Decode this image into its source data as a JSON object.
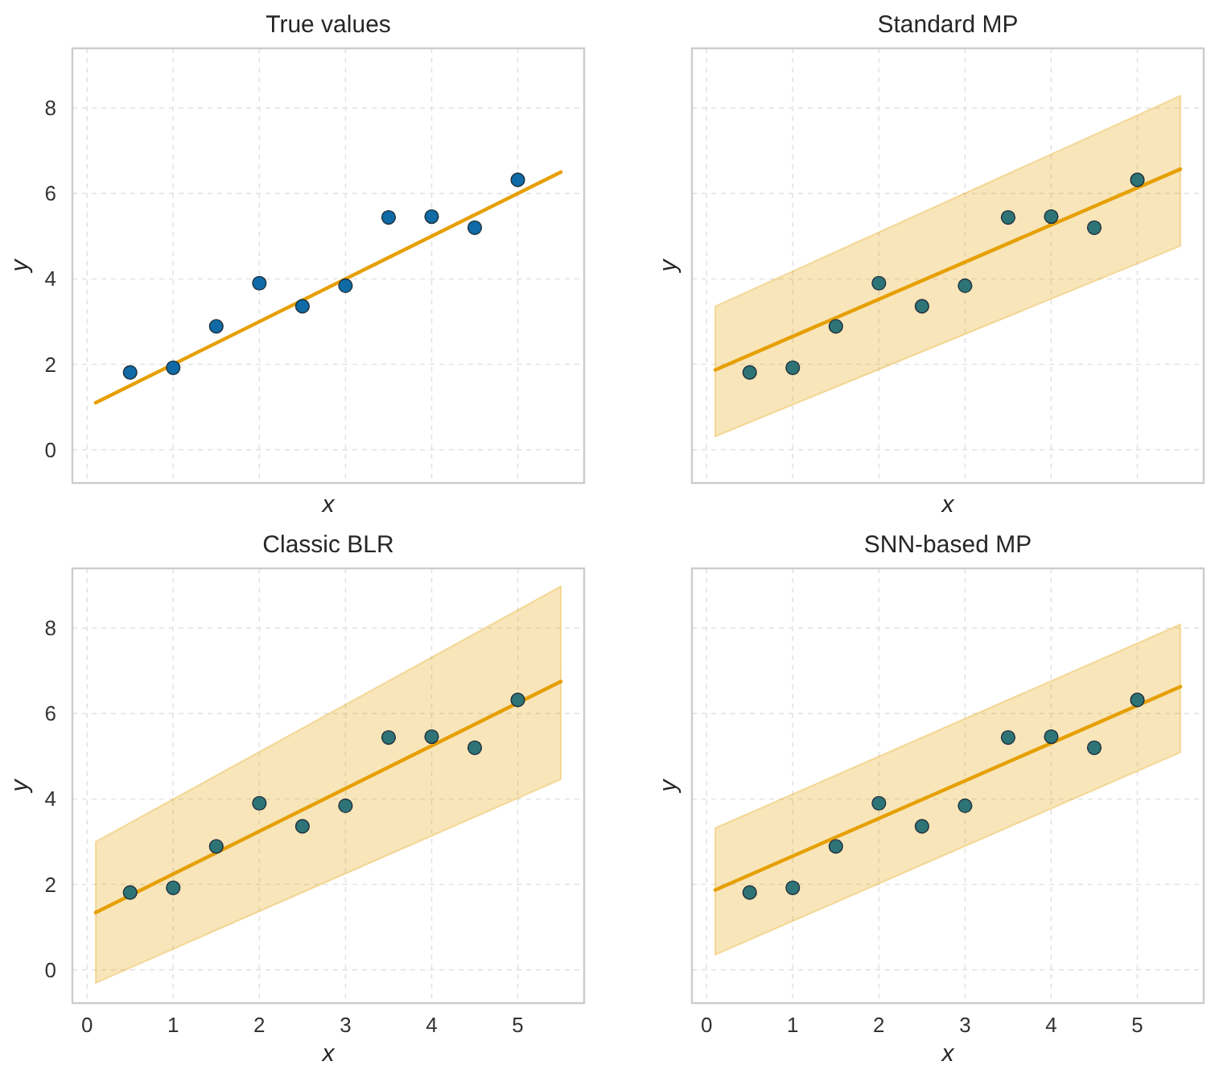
{
  "chart_data": [
    {
      "type": "scatter",
      "title": "True values",
      "xlabel": "x",
      "ylabel": "y",
      "xlim": [
        -0.17,
        5.77
      ],
      "ylim": [
        -0.78,
        9.4
      ],
      "xticks": [
        0,
        1,
        2,
        3,
        4,
        5
      ],
      "yticks": [
        0,
        2,
        4,
        6,
        8
      ],
      "grid": true,
      "tick_labels": "y",
      "series": [
        {
          "type": "scatter",
          "marker": "circle",
          "color": "#0f6aa6",
          "x": [
            0.5,
            1,
            1.5,
            2,
            2.5,
            3,
            3.5,
            4,
            4.5,
            5
          ],
          "values": [
            1.81,
            1.92,
            2.89,
            3.9,
            3.36,
            3.84,
            5.44,
            5.46,
            5.2,
            6.32
          ]
        },
        {
          "type": "line",
          "color": "#e69f00",
          "x": [
            0.1,
            5.5
          ],
          "values": [
            1.1,
            6.5
          ]
        }
      ]
    },
    {
      "type": "scatter",
      "title": "Standard MP",
      "xlabel": "x",
      "ylabel": "y",
      "xlim": [
        -0.17,
        5.77
      ],
      "ylim": [
        -0.78,
        9.4
      ],
      "xticks": [
        0,
        1,
        2,
        3,
        4,
        5
      ],
      "yticks": [
        0,
        2,
        4,
        6,
        8
      ],
      "grid": true,
      "tick_labels": false,
      "series": [
        {
          "type": "scatter",
          "marker": "circle",
          "color": "#2e7477",
          "x": [
            0.5,
            1,
            1.5,
            2,
            2.5,
            3,
            3.5,
            4,
            4.5,
            5
          ],
          "values": [
            1.81,
            1.92,
            2.89,
            3.9,
            3.36,
            3.84,
            5.44,
            5.46,
            5.2,
            6.32
          ]
        },
        {
          "type": "line",
          "color": "#e69f00",
          "x": [
            0.1,
            5.5
          ],
          "values": [
            1.87,
            6.57
          ],
          "lower": [
            0.31,
            4.77
          ],
          "upper": [
            3.36,
            8.29
          ]
        }
      ]
    },
    {
      "type": "scatter",
      "title": "Classic BLR",
      "xlabel": "x",
      "ylabel": "y",
      "xlim": [
        -0.17,
        5.77
      ],
      "ylim": [
        -0.78,
        9.4
      ],
      "xticks": [
        0,
        1,
        2,
        3,
        4,
        5
      ],
      "yticks": [
        0,
        2,
        4,
        6,
        8
      ],
      "grid": true,
      "series": [
        {
          "type": "scatter",
          "marker": "circle",
          "color": "#2e7477",
          "x": [
            0.5,
            1,
            1.5,
            2,
            2.5,
            3,
            3.5,
            4,
            4.5,
            5
          ],
          "values": [
            1.81,
            1.92,
            2.89,
            3.9,
            3.36,
            3.84,
            5.44,
            5.46,
            5.2,
            6.32
          ]
        },
        {
          "type": "line",
          "color": "#e69f00",
          "x": [
            0.1,
            5.5
          ],
          "values": [
            1.34,
            6.75
          ],
          "lower": [
            -0.31,
            4.46
          ],
          "upper": [
            3.0,
            8.98
          ]
        }
      ]
    },
    {
      "type": "scatter",
      "title": "SNN-based MP",
      "xlabel": "x",
      "ylabel": "y",
      "xlim": [
        -0.17,
        5.77
      ],
      "ylim": [
        -0.78,
        9.4
      ],
      "xticks": [
        0,
        1,
        2,
        3,
        4,
        5
      ],
      "yticks": [
        0,
        2,
        4,
        6,
        8
      ],
      "grid": true,
      "tick_labels": "x",
      "series": [
        {
          "type": "scatter",
          "marker": "circle",
          "color": "#2e7477",
          "x": [
            0.5,
            1,
            1.5,
            2,
            2.5,
            3,
            3.5,
            4,
            4.5,
            5
          ],
          "values": [
            1.81,
            1.92,
            2.89,
            3.9,
            3.36,
            3.84,
            5.44,
            5.46,
            5.2,
            6.32
          ]
        },
        {
          "type": "line",
          "color": "#e69f00",
          "x": [
            0.1,
            5.5
          ],
          "values": [
            1.87,
            6.63
          ],
          "lower": [
            0.35,
            5.09
          ],
          "upper": [
            3.32,
            8.09
          ]
        }
      ]
    }
  ]
}
